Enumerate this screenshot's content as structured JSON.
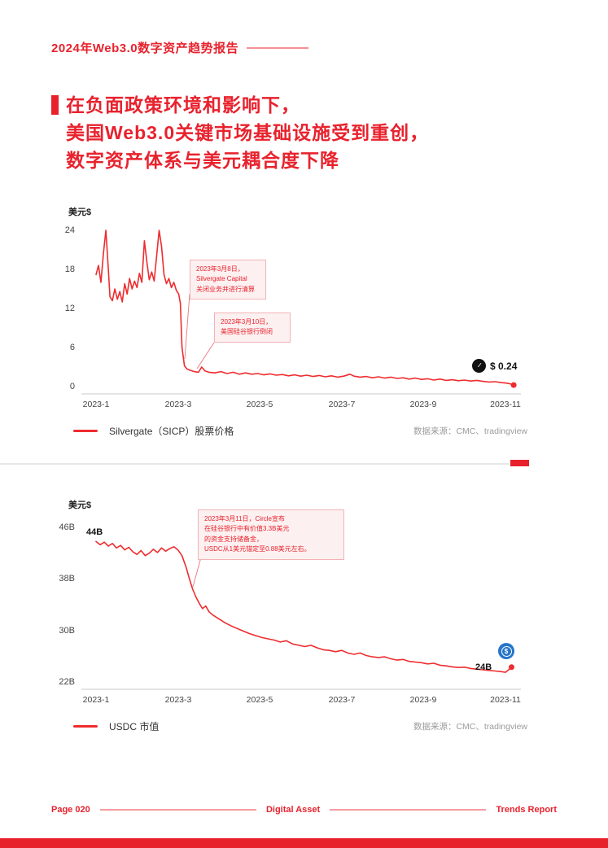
{
  "colors": {
    "accent": "#e8222d",
    "line": "#ee2c2f",
    "pink_bg": "#fdf0f0"
  },
  "header": {
    "title": "2024年Web3.0数字资产趋势报告"
  },
  "headline": {
    "lines": [
      "在负面政策环境和影响下，",
      "美国Web3.0关键市场基础设施受到重创，",
      "数字资产体系与美元耦合度下降"
    ]
  },
  "charts": [
    {
      "y_axis_label": "美元$",
      "y_ticks": [
        "24",
        "18",
        "12",
        "6",
        "0"
      ],
      "x_ticks": [
        "2023-1",
        "2023-3",
        "2023-5",
        "2023-7",
        "2023-9",
        "2023-11"
      ],
      "annotations": [
        {
          "lines": [
            "2023年3月8日，",
            "Silvergate Capital",
            "关闭业务并进行清算"
          ]
        },
        {
          "lines": [
            "2023年3月10日，",
            "美国硅谷银行倒闭"
          ]
        }
      ],
      "end_icon_glyph": "∕∕",
      "end_label": "$ 0.24",
      "legend": "Silvergate（SICP）股票价格",
      "source": "数据来源：CMC、tradingview"
    },
    {
      "y_axis_label": "美元$",
      "y_ticks": [
        "46B",
        "38B",
        "30B",
        "22B"
      ],
      "x_ticks": [
        "2023-1",
        "2023-3",
        "2023-5",
        "2023-7",
        "2023-9",
        "2023-11"
      ],
      "annotations": [
        {
          "lines": [
            "2023年3月11日，Circle宣布",
            "在硅谷银行中有价值3.3B美元",
            "的资金支持储备金，",
            "USDC从1美元锚定至0.88美元左右。"
          ]
        }
      ],
      "start_label": "44B",
      "end_icon_glyph": "$",
      "end_label": "24B",
      "legend": "USDC 市值",
      "source": "数据来源：CMC、tradingview"
    }
  ],
  "footer": {
    "left": "Page 020",
    "center": "Digital Asset",
    "right": "Trends Report"
  },
  "chart_data": [
    {
      "type": "line",
      "title": "Silvergate（SICP）股票价格",
      "ylabel": "美元$",
      "ylim": [
        0,
        24
      ],
      "y_tick_values": [
        24,
        18,
        12,
        6,
        0
      ],
      "x_unit": "months since 2023-01",
      "xlim": [
        0,
        10.5
      ],
      "x_tick_labels": [
        "2023-1",
        "2023-3",
        "2023-5",
        "2023-7",
        "2023-9",
        "2023-11"
      ],
      "legend_position": "bottom-left",
      "grid": false,
      "end_value_label": "$ 0.24",
      "points": [
        [
          0.0,
          17.2
        ],
        [
          0.06,
          18.6
        ],
        [
          0.12,
          16.0
        ],
        [
          0.18,
          20.5
        ],
        [
          0.24,
          24.0
        ],
        [
          0.3,
          18.0
        ],
        [
          0.34,
          13.8
        ],
        [
          0.4,
          13.2
        ],
        [
          0.46,
          15.0
        ],
        [
          0.52,
          13.4
        ],
        [
          0.58,
          14.6
        ],
        [
          0.64,
          13.0
        ],
        [
          0.7,
          15.8
        ],
        [
          0.76,
          14.2
        ],
        [
          0.82,
          16.6
        ],
        [
          0.88,
          15.0
        ],
        [
          0.94,
          16.2
        ],
        [
          1.0,
          15.2
        ],
        [
          1.06,
          17.4
        ],
        [
          1.12,
          16.0
        ],
        [
          1.18,
          22.4
        ],
        [
          1.24,
          19.2
        ],
        [
          1.3,
          16.4
        ],
        [
          1.36,
          17.6
        ],
        [
          1.42,
          16.2
        ],
        [
          1.48,
          20.0
        ],
        [
          1.54,
          24.0
        ],
        [
          1.6,
          21.5
        ],
        [
          1.66,
          17.2
        ],
        [
          1.72,
          15.8
        ],
        [
          1.78,
          16.6
        ],
        [
          1.84,
          15.2
        ],
        [
          1.9,
          16.0
        ],
        [
          1.96,
          14.8
        ],
        [
          2.02,
          14.2
        ],
        [
          2.06,
          12.8
        ],
        [
          2.1,
          6.0
        ],
        [
          2.16,
          3.2
        ],
        [
          2.22,
          2.7
        ],
        [
          2.3,
          2.5
        ],
        [
          2.4,
          2.3
        ],
        [
          2.5,
          2.2
        ],
        [
          2.58,
          3.0
        ],
        [
          2.66,
          2.4
        ],
        [
          2.76,
          2.2
        ],
        [
          2.9,
          2.1
        ],
        [
          3.05,
          2.3
        ],
        [
          3.2,
          2.0
        ],
        [
          3.35,
          2.2
        ],
        [
          3.5,
          1.9
        ],
        [
          3.65,
          2.1
        ],
        [
          3.8,
          1.9
        ],
        [
          3.95,
          2.0
        ],
        [
          4.1,
          1.8
        ],
        [
          4.25,
          1.95
        ],
        [
          4.4,
          1.75
        ],
        [
          4.55,
          1.85
        ],
        [
          4.7,
          1.65
        ],
        [
          4.85,
          1.8
        ],
        [
          5.0,
          1.6
        ],
        [
          5.15,
          1.75
        ],
        [
          5.3,
          1.55
        ],
        [
          5.45,
          1.7
        ],
        [
          5.6,
          1.5
        ],
        [
          5.75,
          1.65
        ],
        [
          5.9,
          1.45
        ],
        [
          6.05,
          1.6
        ],
        [
          6.2,
          1.9
        ],
        [
          6.3,
          1.6
        ],
        [
          6.45,
          1.45
        ],
        [
          6.6,
          1.55
        ],
        [
          6.75,
          1.35
        ],
        [
          6.9,
          1.5
        ],
        [
          7.05,
          1.3
        ],
        [
          7.2,
          1.45
        ],
        [
          7.35,
          1.25
        ],
        [
          7.5,
          1.35
        ],
        [
          7.65,
          1.15
        ],
        [
          7.8,
          1.3
        ],
        [
          7.95,
          1.1
        ],
        [
          8.1,
          1.2
        ],
        [
          8.25,
          1.0
        ],
        [
          8.4,
          1.15
        ],
        [
          8.55,
          0.95
        ],
        [
          8.7,
          1.05
        ],
        [
          8.85,
          0.9
        ],
        [
          9.0,
          1.0
        ],
        [
          9.15,
          0.85
        ],
        [
          9.3,
          0.95
        ],
        [
          9.45,
          0.8
        ],
        [
          9.6,
          0.7
        ],
        [
          9.75,
          0.75
        ],
        [
          9.9,
          0.6
        ],
        [
          10.0,
          0.55
        ],
        [
          10.1,
          0.45
        ],
        [
          10.2,
          0.24
        ]
      ]
    },
    {
      "type": "line",
      "title": "USDC 市值",
      "ylabel": "美元$",
      "ylim": [
        22,
        46
      ],
      "y_tick_values": [
        46,
        38,
        30,
        22
      ],
      "y_unit": "B USD",
      "x_unit": "months since 2023-01",
      "xlim": [
        0,
        10.5
      ],
      "x_tick_labels": [
        "2023-1",
        "2023-3",
        "2023-5",
        "2023-7",
        "2023-9",
        "2023-11"
      ],
      "legend_position": "bottom-left",
      "grid": false,
      "start_value_label": "44B",
      "end_value_label": "24B",
      "points": [
        [
          0.0,
          43.8
        ],
        [
          0.1,
          43.3
        ],
        [
          0.2,
          43.7
        ],
        [
          0.3,
          43.1
        ],
        [
          0.4,
          43.5
        ],
        [
          0.5,
          42.8
        ],
        [
          0.6,
          43.2
        ],
        [
          0.7,
          42.5
        ],
        [
          0.8,
          42.9
        ],
        [
          0.9,
          42.2
        ],
        [
          1.0,
          41.8
        ],
        [
          1.1,
          42.4
        ],
        [
          1.2,
          41.6
        ],
        [
          1.3,
          42.0
        ],
        [
          1.4,
          42.6
        ],
        [
          1.5,
          42.1
        ],
        [
          1.6,
          42.8
        ],
        [
          1.7,
          42.3
        ],
        [
          1.8,
          42.7
        ],
        [
          1.9,
          43.0
        ],
        [
          2.0,
          42.5
        ],
        [
          2.1,
          41.6
        ],
        [
          2.2,
          39.8
        ],
        [
          2.28,
          38.0
        ],
        [
          2.36,
          36.4
        ],
        [
          2.44,
          35.2
        ],
        [
          2.52,
          34.2
        ],
        [
          2.6,
          33.4
        ],
        [
          2.68,
          33.8
        ],
        [
          2.76,
          32.9
        ],
        [
          2.85,
          32.4
        ],
        [
          3.0,
          31.8
        ],
        [
          3.15,
          31.2
        ],
        [
          3.3,
          30.7
        ],
        [
          3.45,
          30.3
        ],
        [
          3.6,
          29.9
        ],
        [
          3.75,
          29.5
        ],
        [
          3.9,
          29.2
        ],
        [
          4.05,
          28.9
        ],
        [
          4.2,
          28.7
        ],
        [
          4.35,
          28.5
        ],
        [
          4.5,
          28.2
        ],
        [
          4.65,
          28.4
        ],
        [
          4.8,
          27.9
        ],
        [
          4.95,
          27.7
        ],
        [
          5.1,
          27.5
        ],
        [
          5.25,
          27.7
        ],
        [
          5.4,
          27.3
        ],
        [
          5.55,
          27.0
        ],
        [
          5.7,
          26.9
        ],
        [
          5.85,
          26.7
        ],
        [
          6.0,
          26.9
        ],
        [
          6.15,
          26.5
        ],
        [
          6.3,
          26.3
        ],
        [
          6.45,
          26.5
        ],
        [
          6.6,
          26.1
        ],
        [
          6.75,
          25.9
        ],
        [
          6.9,
          25.8
        ],
        [
          7.05,
          25.9
        ],
        [
          7.2,
          25.6
        ],
        [
          7.35,
          25.4
        ],
        [
          7.5,
          25.5
        ],
        [
          7.65,
          25.2
        ],
        [
          7.8,
          25.1
        ],
        [
          7.95,
          25.0
        ],
        [
          8.1,
          24.8
        ],
        [
          8.25,
          24.9
        ],
        [
          8.4,
          24.6
        ],
        [
          8.55,
          24.5
        ],
        [
          8.7,
          24.35
        ],
        [
          8.85,
          24.25
        ],
        [
          9.0,
          24.3
        ],
        [
          9.15,
          24.1
        ],
        [
          9.3,
          24.0
        ],
        [
          9.45,
          23.9
        ],
        [
          9.6,
          23.8
        ],
        [
          9.75,
          23.7
        ],
        [
          9.9,
          23.6
        ],
        [
          10.0,
          23.5
        ],
        [
          10.08,
          23.9
        ],
        [
          10.15,
          24.3
        ]
      ]
    }
  ]
}
